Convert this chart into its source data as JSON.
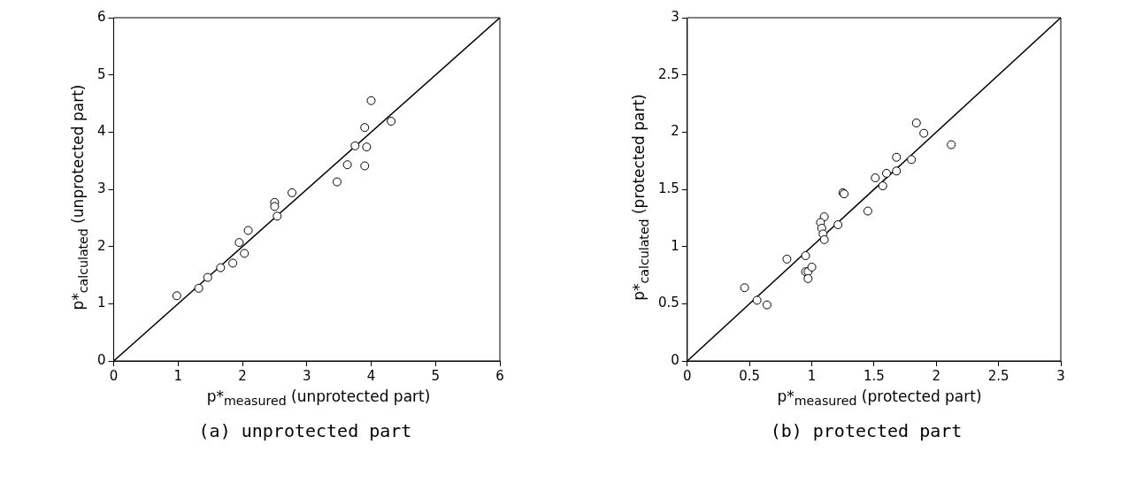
{
  "chart_data": [
    {
      "type": "scatter",
      "xlabel": "p*$_{measured}$ (unprotected part)",
      "ylabel": "p*$_{calculated}$ (unprotected part)",
      "annotations": [
        "(a) unprotected part"
      ],
      "xlim": [
        0,
        6
      ],
      "ylim": [
        0,
        6
      ],
      "xticks": [
        0,
        1,
        2,
        3,
        4,
        5,
        6
      ],
      "yticks": [
        0,
        1,
        2,
        3,
        4,
        5,
        6
      ],
      "grid": false,
      "legend": false,
      "marker": "circle",
      "series": [
        {
          "color": "#000000",
          "x": [
            0.98,
            1.32,
            1.46,
            1.66,
            1.85,
            1.95,
            2.03,
            2.09,
            2.5,
            2.5,
            2.54,
            2.77,
            3.47,
            3.63,
            3.75,
            3.9,
            3.93,
            3.9,
            4.0,
            4.31
          ],
          "values": [
            1.14,
            1.27,
            1.46,
            1.63,
            1.71,
            2.07,
            1.88,
            2.28,
            2.77,
            2.7,
            2.53,
            2.94,
            3.13,
            3.43,
            3.76,
            4.08,
            3.74,
            3.41,
            4.55,
            4.19
          ]
        },
        {
          "type": "line",
          "color": "#000000",
          "marker": "none",
          "x": [
            0,
            6
          ],
          "values": [
            0,
            6
          ]
        }
      ]
    },
    {
      "type": "scatter",
      "xlabel": "p*$_{measured}$ (protected part)",
      "ylabel": "p*$_{calculated}$ (protected part)",
      "annotations": [
        "(b) protected part"
      ],
      "xlim": [
        0,
        3
      ],
      "ylim": [
        0,
        3
      ],
      "xticks": [
        0,
        0.5,
        1,
        1.5,
        2,
        2.5,
        3
      ],
      "yticks": [
        0,
        0.5,
        1,
        1.5,
        2,
        2.5,
        3
      ],
      "grid": false,
      "legend": false,
      "marker": "circle",
      "series": [
        {
          "color": "#000000",
          "x": [
            0.46,
            0.56,
            0.64,
            0.8,
            0.95,
            0.95,
            0.97,
            1.0,
            0.97,
            1.1,
            1.07,
            1.08,
            1.09,
            1.1,
            1.21,
            1.25,
            1.26,
            1.45,
            1.51,
            1.57,
            1.6,
            1.68,
            1.68,
            1.8,
            1.84,
            1.9,
            2.12
          ],
          "values": [
            0.64,
            0.53,
            0.49,
            0.89,
            0.92,
            0.78,
            0.78,
            0.82,
            0.72,
            1.26,
            1.21,
            1.16,
            1.11,
            1.06,
            1.19,
            1.47,
            1.46,
            1.31,
            1.6,
            1.53,
            1.64,
            1.66,
            1.78,
            1.76,
            2.08,
            1.99,
            1.89
          ]
        },
        {
          "type": "line",
          "color": "#000000",
          "marker": "none",
          "x": [
            0,
            3
          ],
          "values": [
            0,
            3
          ]
        }
      ]
    }
  ]
}
